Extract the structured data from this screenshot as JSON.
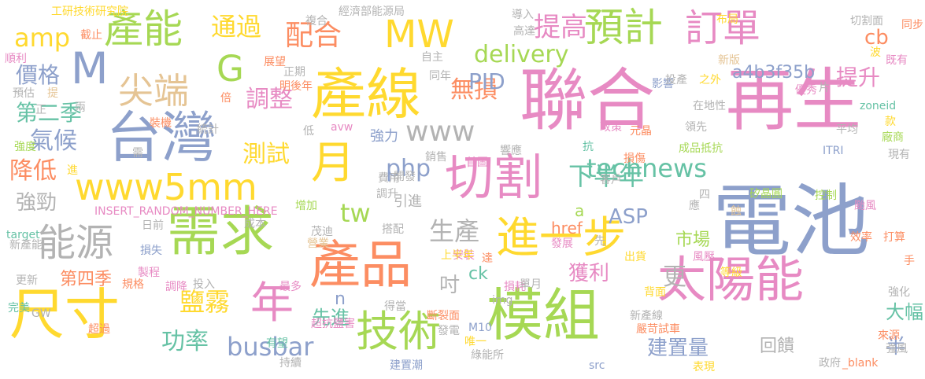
{
  "palette": [
    "#66c2a5",
    "#fc8d62",
    "#8da0cb",
    "#e78ac3",
    "#a6d854",
    "#ffd92f",
    "#e5c494",
    "#b3b3b3"
  ],
  "words": [
    {
      "text": "電池",
      "color": "#8da0cb"
    },
    {
      "text": "再生",
      "color": "#e78ac3"
    },
    {
      "text": "聯合",
      "color": "#e78ac3"
    },
    {
      "text": "模組",
      "color": "#a6d854"
    },
    {
      "text": "產線",
      "color": "#ffd92f"
    },
    {
      "text": "台灣",
      "color": "#8da0cb"
    },
    {
      "text": "尺寸",
      "color": "#ffd92f"
    },
    {
      "text": "需求",
      "color": "#a6d854"
    },
    {
      "text": "產品",
      "color": "#fc8d62"
    },
    {
      "text": "太陽能",
      "color": "#e78ac3"
    },
    {
      "text": "切割",
      "color": "#e78ac3"
    },
    {
      "text": "進一步",
      "color": "#ffd92f"
    },
    {
      "text": "技術",
      "color": "#a6d854"
    },
    {
      "text": "產能",
      "color": "#a6d854"
    },
    {
      "text": "MW",
      "color": "#ffd92f"
    },
    {
      "text": "預計",
      "color": "#a6d854"
    },
    {
      "text": "訂單",
      "color": "#e78ac3"
    },
    {
      "text": "M",
      "color": "#8da0cb"
    },
    {
      "text": "www5mm",
      "color": "#ffd92f"
    },
    {
      "text": "能源",
      "color": "#b3b3b3"
    },
    {
      "text": "年",
      "color": "#e78ac3"
    },
    {
      "text": "月",
      "color": "#ffd92f"
    },
    {
      "text": "G",
      "color": "#a6d854"
    },
    {
      "text": "尖端",
      "color": "#e5c494"
    },
    {
      "text": "technews",
      "color": "#66c2a5"
    },
    {
      "text": "busbar",
      "color": "#8da0cb"
    },
    {
      "text": "功率",
      "color": "#66c2a5"
    },
    {
      "text": "提高",
      "color": "#e78ac3"
    },
    {
      "text": "配合",
      "color": "#fc8d62"
    },
    {
      "text": "通過",
      "color": "#ffd92f"
    },
    {
      "text": "下半年",
      "color": "#66c2a5"
    },
    {
      "text": "www",
      "color": "#b3b3b3"
    },
    {
      "text": "delivery",
      "color": "#a6d854"
    },
    {
      "text": "amp",
      "color": "#ffd92f"
    },
    {
      "text": "php",
      "color": "#8da0cb"
    },
    {
      "text": "生產",
      "color": "#b3b3b3"
    },
    {
      "text": "tw",
      "color": "#a6d854"
    },
    {
      "text": "鹽霧",
      "color": "#ffd92f"
    },
    {
      "text": "氣候",
      "color": "#8da0cb"
    },
    {
      "text": "降低",
      "color": "#fc8d62"
    },
    {
      "text": "測試",
      "color": "#ffd92f"
    },
    {
      "text": "調整",
      "color": "#e78ac3"
    },
    {
      "text": "無損",
      "color": "#fc8d62"
    },
    {
      "text": "PID",
      "color": "#8da0cb"
    },
    {
      "text": "a4b3f35b",
      "color": "#8da0cb"
    },
    {
      "text": "提升",
      "color": "#e78ac3"
    },
    {
      "text": "cb",
      "color": "#fc8d62"
    },
    {
      "text": "價格",
      "color": "#8da0cb"
    },
    {
      "text": "第二季",
      "color": "#66c2a5"
    },
    {
      "text": "強勁",
      "color": "#b3b3b3"
    },
    {
      "text": "ASP",
      "color": "#8da0cb"
    },
    {
      "text": "市場",
      "color": "#a6d854"
    },
    {
      "text": "獲利",
      "color": "#e78ac3"
    },
    {
      "text": "更",
      "color": "#b3b3b3"
    },
    {
      "text": "吋",
      "color": "#b3b3b3"
    },
    {
      "text": "建置量",
      "color": "#8da0cb"
    },
    {
      "text": "大幅",
      "color": "#66c2a5"
    },
    {
      "text": "半",
      "color": "#8da0cb"
    },
    {
      "text": "回饋",
      "color": "#b3b3b3"
    },
    {
      "text": "先進",
      "color": "#66c2a5"
    },
    {
      "text": "第四季",
      "color": "#fc8d62"
    },
    {
      "text": "ck",
      "color": "#66c2a5"
    },
    {
      "text": "href",
      "color": "#fc8d62"
    },
    {
      "text": "強力",
      "color": "#8da0cb"
    },
    {
      "text": "引進",
      "color": "#b3b3b3"
    },
    {
      "text": "n",
      "color": "#8da0cb"
    },
    {
      "text": "a",
      "color": "#a6d854"
    },
    {
      "text": "INSERT_RANDOM_NUMBER_HERE",
      "color": "#e78ac3"
    },
    {
      "text": "工研技術研究院",
      "color": "#ffd92f"
    },
    {
      "text": "經濟部能源局",
      "color": "#b3b3b3"
    },
    {
      "text": "複合",
      "color": "#b3b3b3"
    },
    {
      "text": "導入",
      "color": "#b3b3b3"
    },
    {
      "text": "高達",
      "color": "#b3b3b3"
    },
    {
      "text": "布局",
      "color": "#ffd92f"
    },
    {
      "text": "切割面",
      "color": "#b3b3b3"
    },
    {
      "text": "同步",
      "color": "#fc8d62"
    },
    {
      "text": "既有",
      "color": "#e78ac3"
    },
    {
      "text": "波",
      "color": "#ffd92f"
    },
    {
      "text": "優秀",
      "color": "#e78ac3"
    },
    {
      "text": "新版",
      "color": "#e5c494"
    },
    {
      "text": "影響",
      "color": "#8da0cb"
    },
    {
      "text": "投產",
      "color": "#b3b3b3"
    },
    {
      "text": "之外",
      "color": "#ffd92f"
    },
    {
      "text": "片",
      "color": "#b3b3b3"
    },
    {
      "text": "zoneid",
      "color": "#66c2a5"
    },
    {
      "text": "在地性",
      "color": "#b3b3b3"
    },
    {
      "text": "款",
      "color": "#ffd92f"
    },
    {
      "text": "平均",
      "color": "#b3b3b3"
    },
    {
      "text": "廠商",
      "color": "#a6d854"
    },
    {
      "text": "現有",
      "color": "#b3b3b3"
    },
    {
      "text": "ITRI",
      "color": "#8da0cb"
    },
    {
      "text": "領先",
      "color": "#b3b3b3"
    },
    {
      "text": "元晶",
      "color": "#fc8d62"
    },
    {
      "text": "政策",
      "color": "#e78ac3"
    },
    {
      "text": "成品抵抗",
      "color": "#a6d854"
    },
    {
      "text": "損傷",
      "color": "#fc8d62"
    },
    {
      "text": "客戶",
      "color": "#b3b3b3"
    },
    {
      "text": "抗",
      "color": "#66c2a5"
    },
    {
      "text": "首圖",
      "color": "#e78ac3"
    },
    {
      "text": "響應",
      "color": "#b3b3b3"
    },
    {
      "text": "控制",
      "color": "#a6d854"
    },
    {
      "text": "颱風",
      "color": "#e78ac3"
    },
    {
      "text": "矽晶圓",
      "color": "#a6d854"
    },
    {
      "text": "應",
      "color": "#b3b3b3"
    },
    {
      "text": "四",
      "color": "#b3b3b3"
    },
    {
      "text": "蝕",
      "color": "#e5c494"
    },
    {
      "text": "效率",
      "color": "#fc8d62"
    },
    {
      "text": "打算",
      "color": "#fc8d62"
    },
    {
      "text": "手",
      "color": "#fc8d62"
    },
    {
      "text": "強化",
      "color": "#b3b3b3"
    },
    {
      "text": "來源",
      "color": "#fc8d62"
    },
    {
      "text": "強風",
      "color": "#b3b3b3"
    },
    {
      "text": "_blank",
      "color": "#fc8d62"
    },
    {
      "text": "政府",
      "color": "#b3b3b3"
    },
    {
      "text": "先",
      "color": "#b3b3b3"
    },
    {
      "text": "發展",
      "color": "#e78ac3"
    },
    {
      "text": "出貨",
      "color": "#ffd92f"
    },
    {
      "text": "風壓",
      "color": "#e78ac3"
    },
    {
      "text": "等級",
      "color": "#ffd92f"
    },
    {
      "text": "背面",
      "color": "#ffd92f"
    },
    {
      "text": "新產線",
      "color": "#b3b3b3"
    },
    {
      "text": "嚴苛試車",
      "color": "#fc8d62"
    },
    {
      "text": "表現",
      "color": "#ffd92f"
    },
    {
      "text": "src",
      "color": "#8da0cb"
    },
    {
      "text": "損耗",
      "color": "#e78ac3"
    },
    {
      "text": "單月",
      "color": "#b3b3b3"
    },
    {
      "text": "img",
      "color": "#b3b3b3"
    },
    {
      "text": "斷裂面",
      "color": "#fc8d62"
    },
    {
      "text": "M10",
      "color": "#8da0cb"
    },
    {
      "text": "發電",
      "color": "#b3b3b3"
    },
    {
      "text": "唯一",
      "color": "#ffd92f"
    },
    {
      "text": "綠能所",
      "color": "#b3b3b3"
    },
    {
      "text": "建置潮",
      "color": "#8da0cb"
    },
    {
      "text": "持續",
      "color": "#b3b3b3"
    },
    {
      "text": "有望",
      "color": "#66c2a5"
    },
    {
      "text": "達",
      "color": "#fc8d62"
    },
    {
      "text": "安裝",
      "color": "#e78ac3"
    },
    {
      "text": "上半年",
      "color": "#ffd92f"
    },
    {
      "text": "得當",
      "color": "#b3b3b3"
    },
    {
      "text": "超抗鹽害",
      "color": "#e78ac3"
    },
    {
      "text": "最多",
      "color": "#e78ac3"
    },
    {
      "text": "投入",
      "color": "#b3b3b3"
    },
    {
      "text": "調降",
      "color": "#e78ac3"
    },
    {
      "text": "製程",
      "color": "#e78ac3"
    },
    {
      "text": "規格",
      "color": "#fc8d62"
    },
    {
      "text": "搭配",
      "color": "#b3b3b3"
    },
    {
      "text": "茂迪",
      "color": "#b3b3b3"
    },
    {
      "text": "營業",
      "color": "#e5c494"
    },
    {
      "text": "成本",
      "color": "#b3b3b3"
    },
    {
      "text": "增加",
      "color": "#a6d854"
    },
    {
      "text": "調升",
      "color": "#b3b3b3"
    },
    {
      "text": "費用",
      "color": "#b3b3b3"
    },
    {
      "text": "開發",
      "color": "#b3b3b3"
    },
    {
      "text": "銷售",
      "color": "#b3b3b3"
    },
    {
      "text": "avw",
      "color": "#e78ac3"
    },
    {
      "text": "低",
      "color": "#b3b3b3"
    },
    {
      "text": "統計",
      "color": "#b3b3b3"
    },
    {
      "text": "裝機",
      "color": "#fc8d62"
    },
    {
      "text": "需",
      "color": "#b3b3b3"
    },
    {
      "text": "倍",
      "color": "#fc8d62"
    },
    {
      "text": "正期",
      "color": "#b3b3b3"
    },
    {
      "text": "明後年",
      "color": "#fc8d62"
    },
    {
      "text": "同年",
      "color": "#b3b3b3"
    },
    {
      "text": "展望",
      "color": "#fc8d62"
    },
    {
      "text": "自主",
      "color": "#b3b3b3"
    },
    {
      "text": "截止",
      "color": "#fc8d62"
    },
    {
      "text": "順利",
      "color": "#e78ac3"
    },
    {
      "text": "預估",
      "color": "#b3b3b3"
    },
    {
      "text": "提",
      "color": "#e5c494"
    },
    {
      "text": "正",
      "color": "#b3b3b3"
    },
    {
      "text": "兩",
      "color": "#b3b3b3"
    },
    {
      "text": "強度",
      "color": "#a6d854"
    },
    {
      "text": "進",
      "color": "#ffd92f"
    },
    {
      "text": "target",
      "color": "#66c2a5"
    },
    {
      "text": "新產能",
      "color": "#b3b3b3"
    },
    {
      "text": "日前",
      "color": "#b3b3b3"
    },
    {
      "text": "損失",
      "color": "#8da0cb"
    },
    {
      "text": "更新",
      "color": "#b3b3b3"
    },
    {
      "text": "完美",
      "color": "#66c2a5"
    },
    {
      "text": "GW",
      "color": "#b3b3b3"
    },
    {
      "text": "超過",
      "color": "#fc8d62"
    }
  ]
}
